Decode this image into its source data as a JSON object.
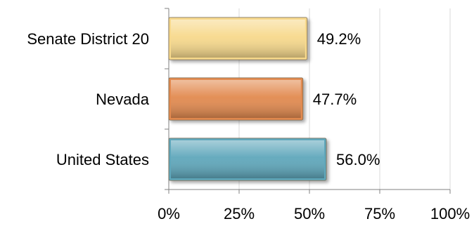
{
  "chart_data": {
    "type": "bar",
    "orientation": "horizontal",
    "categories": [
      "Senate District 20",
      "Nevada",
      "United States"
    ],
    "values": [
      49.2,
      47.7,
      56.0
    ],
    "data_labels": [
      "49.2%",
      "47.7%",
      "56.0%"
    ],
    "bar_colors": [
      "#F7D98C",
      "#E28A4F",
      "#5FA7BB"
    ],
    "xlim": [
      0,
      100
    ],
    "x_ticks": [
      0,
      25,
      50,
      75,
      100
    ],
    "x_tick_labels": [
      "0%",
      "25%",
      "50%",
      "75%",
      "100%"
    ],
    "grid": "vertical",
    "legend": "none",
    "title": "",
    "xlabel": "",
    "ylabel": ""
  }
}
